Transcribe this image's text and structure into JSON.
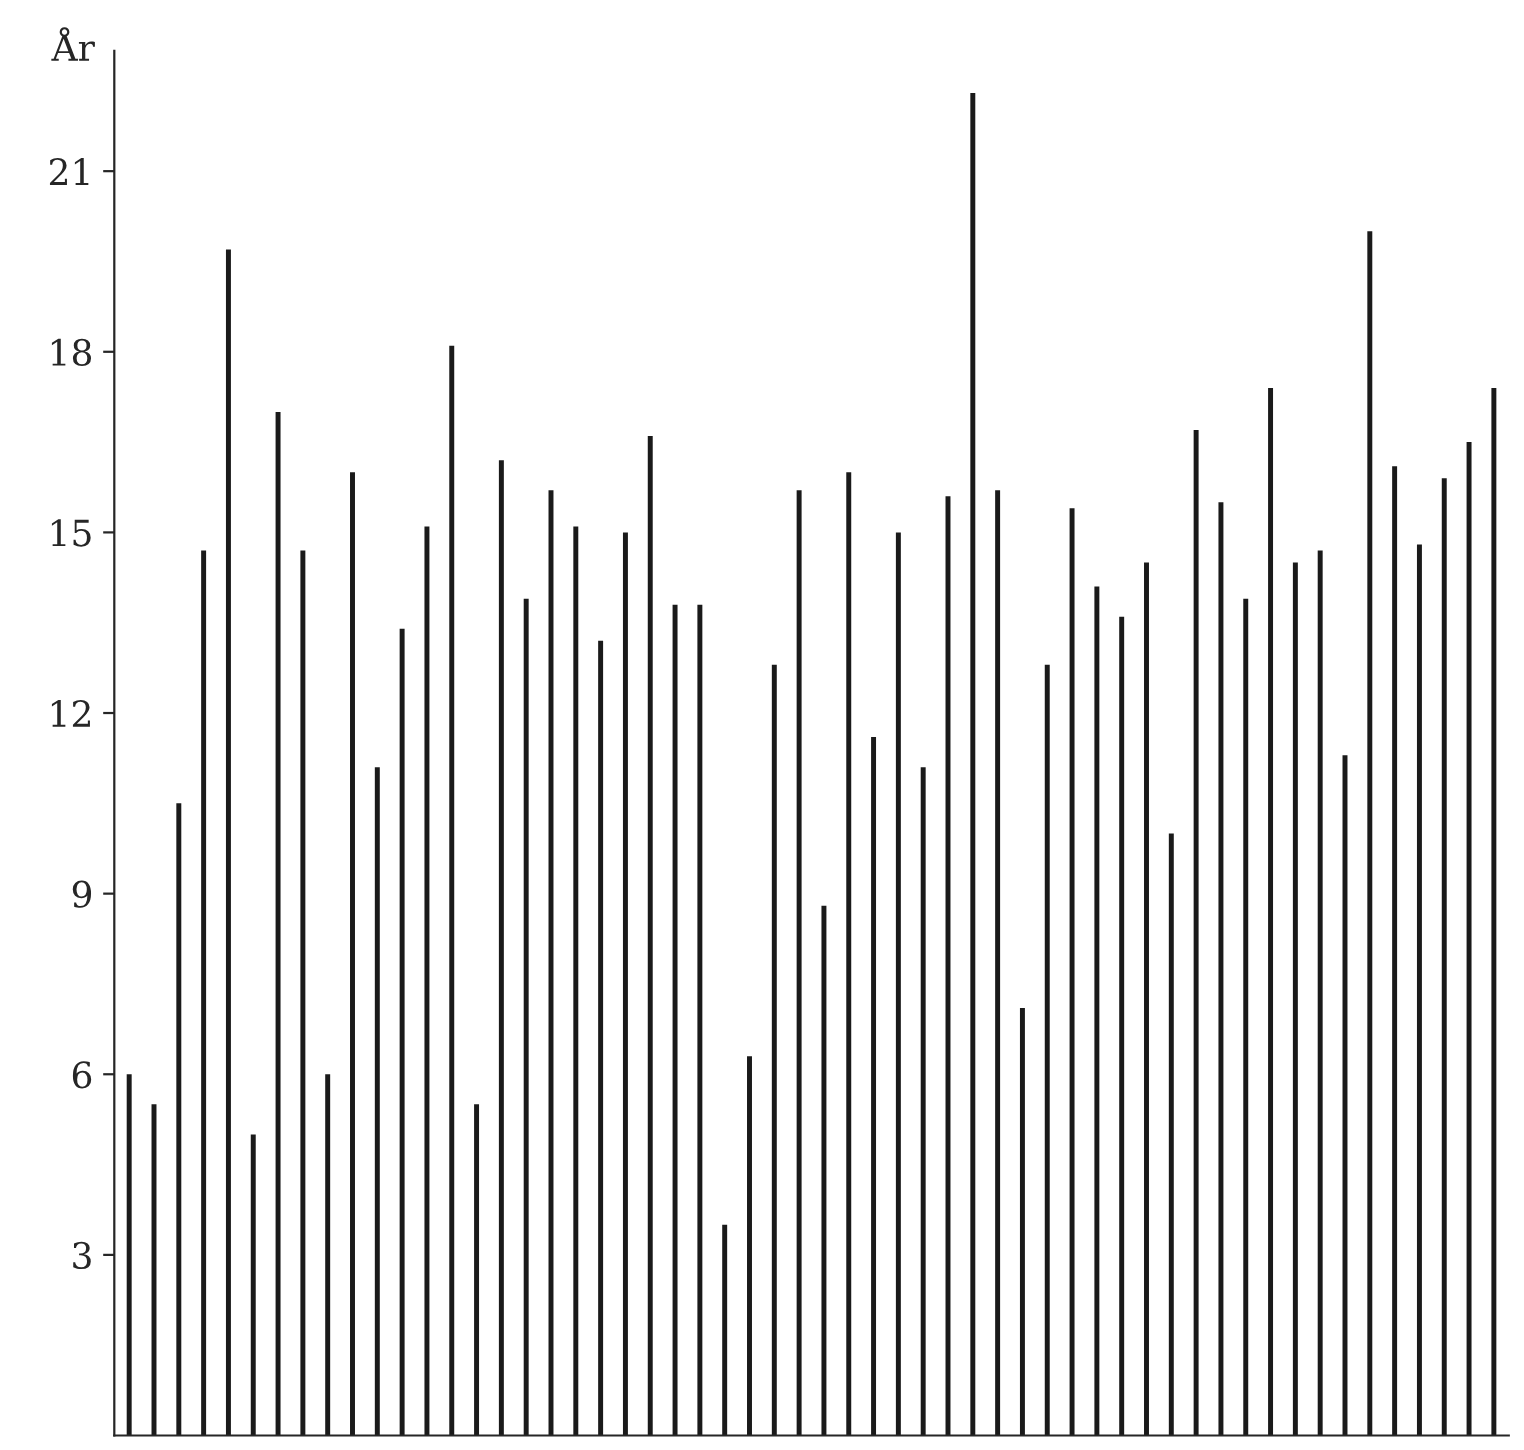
{
  "chart_data": {
    "type": "bar",
    "ylabel": "År",
    "categories": [
      null,
      null,
      null,
      null,
      null,
      null,
      null,
      null,
      null,
      null,
      null,
      null,
      null,
      null,
      null,
      null,
      null,
      null,
      null,
      null,
      null,
      null,
      null,
      null,
      null,
      null,
      null,
      null,
      null,
      null,
      null,
      null,
      null,
      null,
      null,
      null,
      null,
      null,
      null,
      null,
      null,
      null,
      null,
      null,
      null,
      null,
      null,
      null,
      null,
      null,
      null,
      null,
      null,
      null,
      null,
      null
    ],
    "values": [
      6.0,
      5.5,
      10.5,
      14.7,
      19.7,
      5.0,
      17.0,
      14.7,
      6.0,
      16.0,
      11.1,
      13.4,
      15.1,
      18.1,
      5.5,
      16.2,
      13.9,
      15.7,
      15.1,
      13.2,
      15.0,
      16.6,
      13.8,
      13.8,
      3.5,
      6.3,
      12.8,
      15.7,
      8.8,
      16.0,
      11.6,
      15.0,
      11.1,
      15.6,
      22.3,
      15.7,
      7.1,
      12.8,
      15.4,
      14.1,
      13.6,
      14.5,
      10.0,
      16.7,
      15.5,
      13.9,
      17.4,
      14.5,
      14.7,
      11.3,
      20.0,
      16.1,
      14.8,
      15.9,
      16.5,
      17.4
    ],
    "color": "#1a1a1a",
    "ylim": [
      0,
      23
    ],
    "yticks": [
      3,
      6,
      9,
      12,
      15,
      18,
      21
    ],
    "grid": false,
    "legend": false
  }
}
